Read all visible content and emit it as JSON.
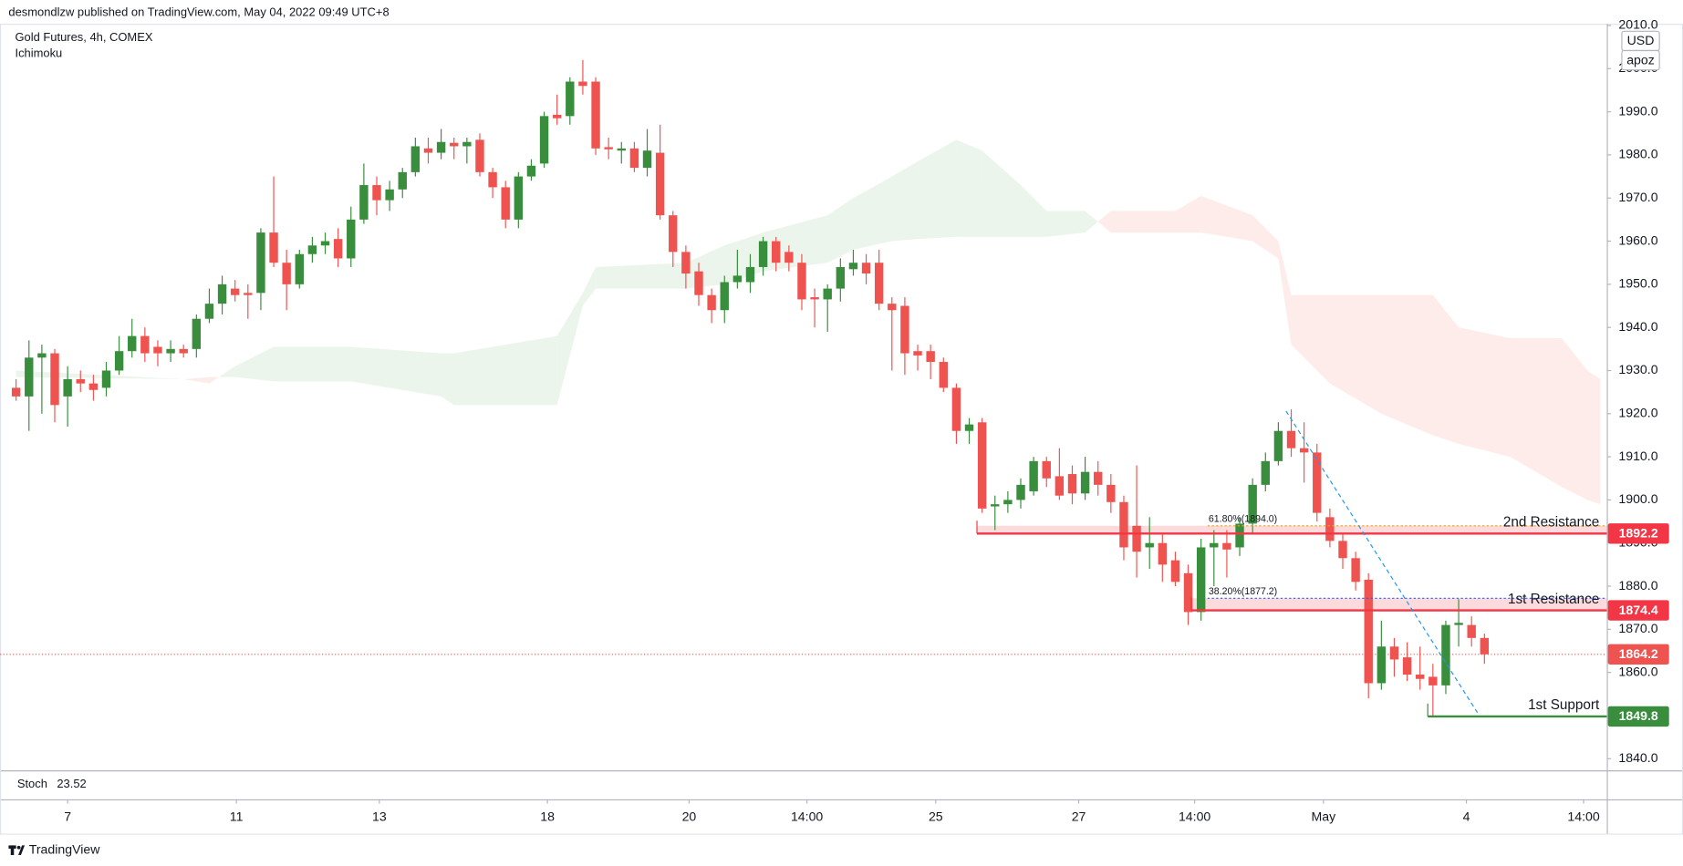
{
  "chart_data": {
    "type": "candlestick",
    "published": "desmondlzw published on TradingView.com, May 04, 2022 09:49 UTC+8",
    "title": "Gold Futures, 4h, COMEX",
    "subtitle": "Ichimoku",
    "currency": "USD",
    "scale_mode": "apoz",
    "indicator": {
      "name": "Stoch",
      "value": 23.52,
      "color": "#2a2e99"
    },
    "footer": "TradingView",
    "up_color": "#388e3c",
    "down_color": "#ef5350",
    "grid": false,
    "ylim": [
      1837.3,
      2010.4
    ],
    "yticks": [
      {
        "value": 1840,
        "label": "1840.0"
      },
      {
        "value": 1850,
        "label": "1850.0"
      },
      {
        "value": 1860,
        "label": "1860.0"
      },
      {
        "value": 1870,
        "label": "1870.0"
      },
      {
        "value": 1880,
        "label": "1880.0"
      },
      {
        "value": 1890,
        "label": "1890.0"
      },
      {
        "value": 1900,
        "label": "1900.0"
      },
      {
        "value": 1910,
        "label": "1910.0"
      },
      {
        "value": 1920,
        "label": "1920.0"
      },
      {
        "value": 1930,
        "label": "1930.0"
      },
      {
        "value": 1940,
        "label": "1940.0"
      },
      {
        "value": 1950,
        "label": "1950.0"
      },
      {
        "value": 1960,
        "label": "1960.0"
      },
      {
        "value": 1970,
        "label": "1970.0"
      },
      {
        "value": 1980,
        "label": "1980.0"
      },
      {
        "value": 1990,
        "label": "1990.0"
      },
      {
        "value": 2000,
        "label": "2000.0"
      },
      {
        "value": 2010,
        "label": "2010.0"
      }
    ],
    "xlim": [
      -1.25,
      123.5
    ],
    "xticks": [
      {
        "value": 4,
        "label": "7"
      },
      {
        "value": 17.1,
        "label": "11"
      },
      {
        "value": 28.2,
        "label": "13"
      },
      {
        "value": 41.25,
        "label": "18"
      },
      {
        "value": 52.25,
        "label": "20"
      },
      {
        "value": 61.4,
        "label": "14:00"
      },
      {
        "value": 71.4,
        "label": "25"
      },
      {
        "value": 82.5,
        "label": "27"
      },
      {
        "value": 91.5,
        "label": "14:00"
      },
      {
        "value": 101.5,
        "label": "May"
      },
      {
        "value": 112.6,
        "label": "4"
      },
      {
        "value": 121.7,
        "label": "14:00"
      }
    ],
    "open": [
      1926,
      1924,
      1933,
      1934,
      1924,
      1928,
      1927,
      1926,
      1930,
      1934.5,
      1938,
      1935.5,
      1934,
      1935,
      1935,
      1942,
      1945.5,
      1949,
      1948,
      1948,
      1962,
      1955,
      1950,
      1957,
      1959,
      1960.5,
      1956,
      1965,
      1973,
      1969.5,
      1972,
      1976,
      1981.5,
      1980.5,
      1982.8,
      1982,
      1983.5,
      1976,
      1972.5,
      1965,
      1975,
      1978,
      1989.3,
      1989,
      1997,
      1997,
      1981.8,
      1981,
      1981.5,
      1977,
      1980.5,
      1966,
      1957.5,
      1953,
      1947.5,
      1944,
      1950.5,
      1950.5,
      1954,
      1960,
      1957.5,
      1955,
      1947,
      1946.5,
      1949,
      1953.5,
      1955,
      1955,
      1945.5,
      1945,
      1934.5,
      1934.5,
      1932,
      1926,
      1916,
      1918,
      1898.5,
      1899,
      1900,
      1902,
      1909,
      1905.5,
      1906,
      1901.5,
      1906.5,
      1903.5,
      1899.5,
      1894,
      1889,
      1890,
      1886,
      1883,
      1874,
      1889,
      1890,
      1889,
      1894.5,
      1903.5,
      1909,
      1916,
      1912,
      1911,
      1896,
      1890.5,
      1886.5,
      1881.5,
      1857.5,
      1866,
      1863.5,
      1859.5,
      1859,
      1857,
      1871,
      1871,
      1868
    ],
    "high": [
      1928,
      1937,
      1936,
      1935,
      1931,
      1930,
      1929,
      1932,
      1938,
      1942,
      1940,
      1937,
      1937,
      1936,
      1943,
      1949,
      1952,
      1951,
      1950,
      1963,
      1975,
      1958,
      1958,
      1961,
      1962,
      1963,
      1968,
      1978,
      1975,
      1974,
      1977,
      1984,
      1984,
      1986,
      1984,
      1984,
      1985,
      1977,
      1974,
      1976,
      1979,
      1990,
      1994,
      1998,
      2002,
      1998,
      1984,
      1983,
      1983,
      1986,
      1987,
      1967,
      1959,
      1955,
      1949,
      1952,
      1958,
      1957,
      1961,
      1961,
      1959,
      1957,
      1949,
      1950,
      1956,
      1958,
      1957,
      1958,
      1947,
      1947,
      1936,
      1936,
      1933,
      1927,
      1919,
      1919,
      1901,
      1902,
      1905,
      1910,
      1910,
      1912,
      1908,
      1910,
      1909,
      1906,
      1901,
      1908,
      1896,
      1892,
      1888,
      1885,
      1891,
      1893,
      1893,
      1896,
      1905,
      1911,
      1918,
      1921,
      1918,
      1913,
      1898,
      1892,
      1888,
      1883,
      1872,
      1868,
      1867,
      1866,
      1862,
      1872,
      1877,
      1873,
      1869
    ],
    "low": [
      1923,
      1916,
      1920,
      1918,
      1917,
      1925,
      1923,
      1924,
      1929,
      1933,
      1932,
      1931,
      1932,
      1933,
      1933,
      1941,
      1943,
      1946,
      1942,
      1944,
      1954,
      1944,
      1949,
      1955,
      1957,
      1954,
      1954,
      1964,
      1966,
      1967,
      1970,
      1975,
      1978,
      1979,
      1979,
      1978,
      1975,
      1970,
      1963,
      1963,
      1974,
      1977,
      1987,
      1987,
      1994,
      1980,
      1979,
      1978,
      1976,
      1975,
      1965,
      1954,
      1949,
      1945,
      1941,
      1941,
      1949,
      1948,
      1952,
      1953,
      1953,
      1944,
      1940,
      1939,
      1946,
      1952,
      1950,
      1944,
      1930,
      1929,
      1930,
      1928,
      1925,
      1913,
      1913,
      1897,
      1893,
      1897,
      1898,
      1901,
      1903,
      1900,
      1899,
      1900,
      1901,
      1897,
      1886,
      1882,
      1884,
      1881,
      1880,
      1871,
      1872,
      1880,
      1882,
      1887,
      1892,
      1902,
      1908,
      1910,
      1904,
      1895,
      1889,
      1884,
      1879,
      1854,
      1856,
      1859,
      1858,
      1856,
      1850,
      1855,
      1866,
      1866,
      1862
    ],
    "close": [
      1924,
      1933,
      1934,
      1922,
      1928,
      1927,
      1925.5,
      1930,
      1934.5,
      1938,
      1934,
      1934,
      1935,
      1934,
      1942,
      1945.5,
      1950,
      1947.5,
      1947.5,
      1962,
      1955,
      1950,
      1957,
      1959,
      1960,
      1956,
      1965,
      1973,
      1969.5,
      1972,
      1976,
      1982,
      1980.5,
      1983,
      1982,
      1983,
      1976,
      1972.5,
      1965,
      1975,
      1977.5,
      1989,
      1988.5,
      1997,
      1996,
      1981.5,
      1981.3,
      1981.5,
      1977,
      1981,
      1966,
      1957.5,
      1952.5,
      1947.5,
      1944,
      1950.5,
      1952,
      1954,
      1960,
      1955,
      1955,
      1946.5,
      1946.5,
      1949,
      1954,
      1955,
      1952.5,
      1945.5,
      1944,
      1934,
      1933.5,
      1932,
      1926,
      1916,
      1917.5,
      1898,
      1899,
      1900,
      1903.5,
      1909,
      1905,
      1901,
      1901.5,
      1906.5,
      1903.5,
      1899.5,
      1889,
      1888,
      1890,
      1885,
      1881,
      1874,
      1889,
      1890,
      1888.5,
      1894.5,
      1903.5,
      1909,
      1916,
      1912,
      1911,
      1897,
      1890.5,
      1886.5,
      1881,
      1857.5,
      1866,
      1863,
      1859.5,
      1858.5,
      1857,
      1871,
      1871.5,
      1868,
      1864.2
    ],
    "cloud": {
      "up_color": "rgba(67,160,71,0.10)",
      "down_color": "rgba(244,67,54,0.10)",
      "x": [
        0,
        13,
        15,
        17,
        20,
        26,
        33,
        34,
        42,
        44,
        45,
        52,
        55,
        58,
        63,
        65,
        68,
        70,
        73,
        75,
        78,
        80,
        83,
        85,
        90,
        92,
        96,
        98,
        99,
        102,
        106,
        110,
        112,
        116,
        120,
        122,
        123
      ],
      "span_a": [
        1930,
        1928,
        1927,
        1931,
        1935.5,
        1935.5,
        1934,
        1934,
        1938,
        1948,
        1954,
        1955,
        1959,
        1962,
        1966,
        1970,
        1975,
        1978.5,
        1983.5,
        1981,
        1973,
        1967,
        1967,
        1962,
        1962,
        1962,
        1960,
        1956,
        1936,
        1927,
        1920,
        1915,
        1913,
        1910,
        1903,
        1900,
        1899
      ],
      "span_b": [
        1928.5,
        1928,
        1928.5,
        1928.5,
        1927.5,
        1927.5,
        1924,
        1922,
        1922,
        1945,
        1949,
        1949,
        1950,
        1953,
        1955,
        1958,
        1960,
        1960.5,
        1961,
        1961,
        1961,
        1961,
        1962,
        1967,
        1967,
        1970.5,
        1966,
        1960,
        1947.5,
        1947.5,
        1947.5,
        1947.5,
        1940,
        1937.5,
        1937.5,
        1930,
        1928
      ]
    },
    "levels": [
      {
        "name": "2nd Resistance",
        "value": 1892.2,
        "start": 74.6,
        "color": "#f23645"
      },
      {
        "name": "1st Resistance",
        "value": 1874.4,
        "start": 91.25,
        "color": "#f23645"
      },
      {
        "name": "1st Support",
        "value": 1849.8,
        "start": 109.6,
        "color": "#388e3c"
      }
    ],
    "fib": [
      {
        "value": 1894.0,
        "label": "61.80%(1894.0)",
        "start": 92.5,
        "color": "#f0a30a"
      },
      {
        "value": 1877.2,
        "label": "38.20%(1877.2)",
        "start": 92.5,
        "color": "#2962ff"
      }
    ],
    "trendline": {
      "x": [
        98.6,
        113.6
      ],
      "y": [
        1920.6,
        1850
      ],
      "color": "#2196f3"
    }
  }
}
